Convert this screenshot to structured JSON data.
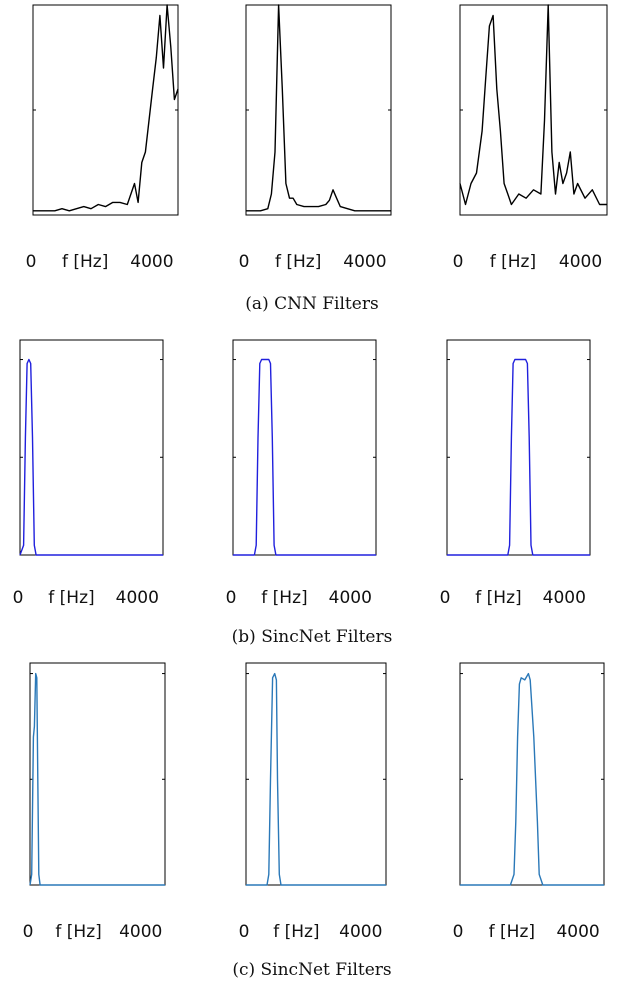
{
  "captions": [
    "(a) CNN Filters",
    "(b) SincNet Filters",
    "(c) SincNet Filters"
  ],
  "chart_data": [
    {
      "type": "line",
      "group": 0,
      "x_ticks": [
        "0",
        "4000"
      ],
      "xlabel": "f [Hz]",
      "xlim": [
        0,
        4000
      ],
      "ylim": [
        0,
        1
      ],
      "color": "#000000",
      "series": [
        {
          "x": [
            0,
            200,
            400,
            600,
            800,
            1000,
            1200,
            1400,
            1600,
            1800,
            2000,
            2200,
            2400,
            2600,
            2800,
            2900,
            3000,
            3100,
            3200,
            3300,
            3400,
            3500,
            3600,
            3700,
            3800,
            3900,
            4000
          ],
          "values": [
            0.02,
            0.02,
            0.02,
            0.02,
            0.03,
            0.02,
            0.03,
            0.04,
            0.03,
            0.05,
            0.04,
            0.06,
            0.06,
            0.05,
            0.15,
            0.06,
            0.25,
            0.3,
            0.45,
            0.6,
            0.75,
            0.95,
            0.7,
            1.0,
            0.8,
            0.55,
            0.6
          ]
        }
      ]
    },
    {
      "type": "line",
      "group": 0,
      "x_ticks": [
        "0",
        "4000"
      ],
      "xlabel": "f [Hz]",
      "xlim": [
        0,
        4000
      ],
      "ylim": [
        0,
        1
      ],
      "color": "#000000",
      "series": [
        {
          "x": [
            0,
            200,
            400,
            600,
            700,
            800,
            900,
            1000,
            1100,
            1200,
            1300,
            1400,
            1600,
            1800,
            2000,
            2200,
            2300,
            2400,
            2500,
            2600,
            2800,
            3000,
            3200,
            3400,
            3600,
            3800,
            4000
          ],
          "values": [
            0.02,
            0.02,
            0.02,
            0.03,
            0.1,
            0.3,
            1.0,
            0.6,
            0.15,
            0.08,
            0.08,
            0.05,
            0.04,
            0.04,
            0.04,
            0.05,
            0.07,
            0.12,
            0.08,
            0.04,
            0.03,
            0.02,
            0.02,
            0.02,
            0.02,
            0.02,
            0.02
          ]
        }
      ]
    },
    {
      "type": "line",
      "group": 0,
      "x_ticks": [
        "0",
        "4000"
      ],
      "xlabel": "f [Hz]",
      "xlim": [
        0,
        4000
      ],
      "ylim": [
        0,
        1
      ],
      "color": "#000000",
      "series": [
        {
          "x": [
            0,
            150,
            300,
            450,
            600,
            700,
            800,
            900,
            1000,
            1100,
            1200,
            1300,
            1400,
            1600,
            1800,
            2000,
            2200,
            2300,
            2400,
            2500,
            2600,
            2700,
            2800,
            2900,
            3000,
            3100,
            3200,
            3400,
            3600,
            3800,
            4000
          ],
          "values": [
            0.15,
            0.05,
            0.15,
            0.2,
            0.4,
            0.65,
            0.9,
            0.95,
            0.6,
            0.4,
            0.15,
            0.1,
            0.05,
            0.1,
            0.08,
            0.12,
            0.1,
            0.45,
            1.0,
            0.3,
            0.1,
            0.25,
            0.15,
            0.2,
            0.3,
            0.1,
            0.15,
            0.08,
            0.12,
            0.05,
            0.05
          ]
        }
      ]
    },
    {
      "type": "line",
      "group": 1,
      "x_ticks": [
        "0",
        "4000"
      ],
      "xlabel": "f [Hz]",
      "xlim": [
        0,
        4000
      ],
      "ylim": [
        0,
        1.1
      ],
      "color": "#2020dd",
      "series": [
        {
          "x": [
            0,
            100,
            150,
            200,
            250,
            300,
            350,
            400,
            450,
            500,
            4000
          ],
          "values": [
            0,
            0.05,
            0.6,
            0.98,
            1.0,
            0.98,
            0.6,
            0.05,
            0,
            0,
            0
          ]
        }
      ]
    },
    {
      "type": "line",
      "group": 1,
      "x_ticks": [
        "0",
        "4000"
      ],
      "xlabel": "f [Hz]",
      "xlim": [
        0,
        4000
      ],
      "ylim": [
        0,
        1.1
      ],
      "color": "#2020dd",
      "series": [
        {
          "x": [
            0,
            600,
            650,
            700,
            750,
            800,
            900,
            1000,
            1050,
            1100,
            1150,
            1200,
            4000
          ],
          "values": [
            0,
            0,
            0.05,
            0.6,
            0.98,
            1.0,
            1.0,
            1.0,
            0.98,
            0.6,
            0.05,
            0,
            0
          ]
        }
      ]
    },
    {
      "type": "line",
      "group": 1,
      "x_ticks": [
        "0",
        "4000"
      ],
      "xlabel": "f [Hz]",
      "xlim": [
        0,
        4000
      ],
      "ylim": [
        0,
        1.1
      ],
      "color": "#2020dd",
      "series": [
        {
          "x": [
            0,
            1700,
            1750,
            1800,
            1850,
            1900,
            2200,
            2250,
            2300,
            2350,
            2400,
            4000
          ],
          "values": [
            0,
            0,
            0.05,
            0.6,
            0.98,
            1.0,
            1.0,
            0.98,
            0.6,
            0.05,
            0,
            0
          ]
        }
      ]
    },
    {
      "type": "line",
      "group": 2,
      "x_ticks": [
        "0",
        "4000"
      ],
      "xlabel": "f [Hz]",
      "xlim": [
        0,
        4000
      ],
      "ylim": [
        0,
        1.05
      ],
      "color": "#2a78b8",
      "series": [
        {
          "x": [
            0,
            50,
            100,
            130,
            170,
            200,
            230,
            260,
            300,
            350,
            4000
          ],
          "values": [
            0,
            0.05,
            0.7,
            0.75,
            1.0,
            0.98,
            0.5,
            0.05,
            0,
            0,
            0
          ]
        }
      ]
    },
    {
      "type": "line",
      "group": 2,
      "x_ticks": [
        "0",
        "4000"
      ],
      "xlabel": "f [Hz]",
      "xlim": [
        0,
        4000
      ],
      "ylim": [
        0,
        1.05
      ],
      "color": "#2a78b8",
      "series": [
        {
          "x": [
            0,
            600,
            650,
            700,
            760,
            820,
            870,
            900,
            950,
            1000,
            4000
          ],
          "values": [
            0,
            0,
            0.05,
            0.5,
            0.98,
            1.0,
            0.97,
            0.5,
            0.05,
            0,
            0
          ]
        }
      ]
    },
    {
      "type": "line",
      "group": 2,
      "x_ticks": [
        "0",
        "4000"
      ],
      "xlabel": "f [Hz]",
      "xlim": [
        0,
        4000
      ],
      "ylim": [
        0,
        1.05
      ],
      "color": "#2a78b8",
      "series": [
        {
          "x": [
            0,
            1400,
            1500,
            1550,
            1600,
            1650,
            1700,
            1800,
            1900,
            1950,
            2050,
            2150,
            2200,
            2300,
            4000
          ],
          "values": [
            0,
            0,
            0.05,
            0.3,
            0.7,
            0.95,
            0.98,
            0.97,
            1.0,
            0.97,
            0.7,
            0.3,
            0.05,
            0,
            0
          ]
        }
      ]
    }
  ]
}
